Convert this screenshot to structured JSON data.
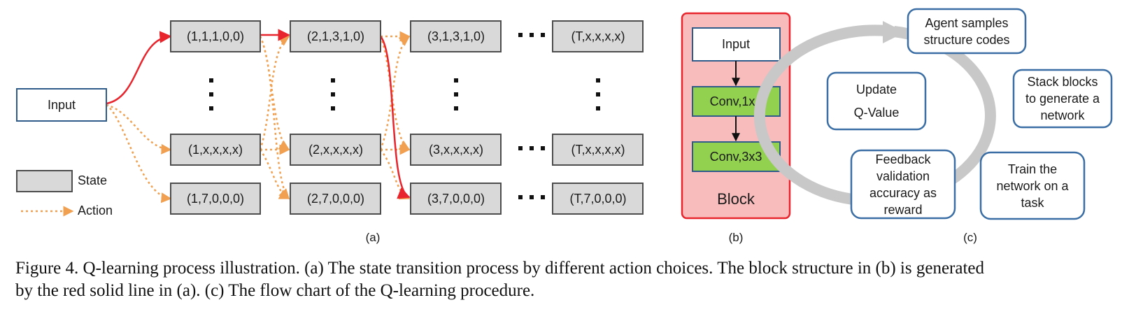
{
  "panel_a": {
    "input_label": "Input",
    "states_row1": [
      "(1,1,1,0,0)",
      "(2,1,3,1,0)",
      "(3,1,3,1,0)",
      "(T,x,x,x,x)"
    ],
    "states_row2": [
      "(1,x,x,x,x)",
      "(2,x,x,x,x)",
      "(3,x,x,x,x)",
      "(T,x,x,x,x)"
    ],
    "states_row3": [
      "(1,7,0,0,0)",
      "(2,7,0,0,0)",
      "(3,7,0,0,0)",
      "(T,7,0,0,0)"
    ],
    "legend": {
      "state_label": "State",
      "action_label": "Action"
    },
    "label": "(a)"
  },
  "panel_b": {
    "input_label": "Input",
    "layer1": "Conv,1x1",
    "layer2": "Conv,3x3",
    "block_label": "Block",
    "label": "(b)"
  },
  "panel_c": {
    "node1": [
      "Agent samples",
      "structure codes"
    ],
    "node2": [
      "Stack blocks",
      "to generate a",
      "network"
    ],
    "node3": [
      "Train the",
      "network on a",
      "task"
    ],
    "node4": [
      "Feedback",
      "validation",
      "accuracy as",
      "reward"
    ],
    "node5": [
      "Update",
      "Q-Value"
    ],
    "label": "(c)"
  },
  "caption": {
    "line1": "Figure 4. Q-learning process illustration. (a) The state transition process by different action choices. The block structure in (b) is generated",
    "line2": "by the red solid line in (a). (c) The flow chart of the Q-learning procedure."
  },
  "colors": {
    "state_fill": "#d9d9d9",
    "action_orange": "#f0a050",
    "selected_red": "#e8242c",
    "block_fill": "#f8bcbc",
    "block_border": "#e8242c",
    "conv_fill": "#92d050",
    "node_border": "#3a6ea5",
    "cycle_gray": "#c8c8c8"
  }
}
